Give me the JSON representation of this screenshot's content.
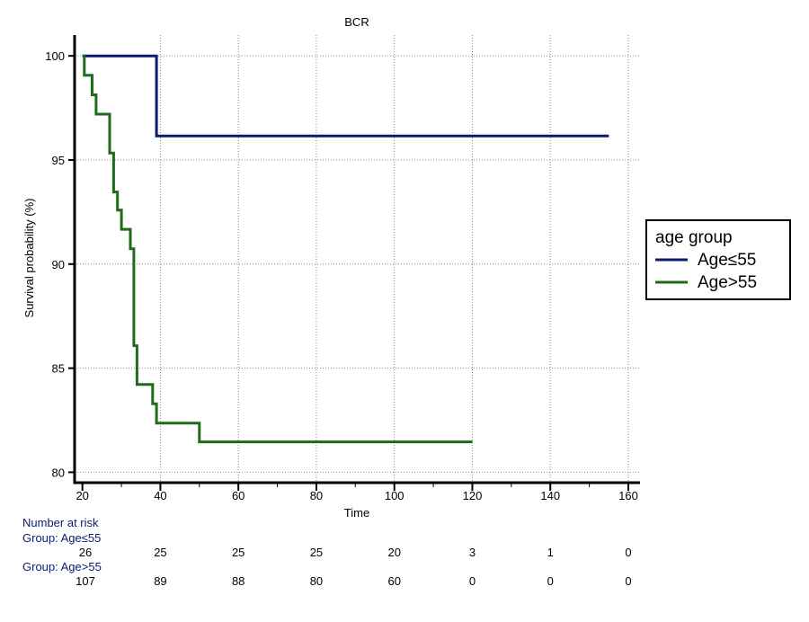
{
  "chart_data": {
    "type": "line",
    "title": "BCR",
    "xlabel": "Time",
    "ylabel": "Survival probability (%)",
    "xlim": [
      18,
      163
    ],
    "ylim": [
      79.5,
      101
    ],
    "x_ticks": [
      20,
      40,
      60,
      80,
      100,
      120,
      140,
      160
    ],
    "x_minor_ticks": [
      30,
      50,
      70,
      90,
      110,
      130,
      150
    ],
    "y_ticks": [
      80,
      85,
      90,
      95,
      100
    ],
    "grid": true,
    "legend": {
      "title": "age group",
      "placement": "right"
    },
    "series": [
      {
        "name": "Age≤55",
        "color": "#0d1b6e",
        "step": true,
        "points": [
          [
            20,
            100
          ],
          [
            39,
            100
          ],
          [
            39,
            96.15
          ],
          [
            155,
            96.15
          ]
        ]
      },
      {
        "name": "Age>55",
        "color": "#1f6b1a",
        "step": true,
        "points": [
          [
            20,
            100
          ],
          [
            20.5,
            100
          ],
          [
            20.5,
            99.07
          ],
          [
            22.5,
            99.07
          ],
          [
            22.5,
            98.13
          ],
          [
            23.5,
            98.13
          ],
          [
            23.5,
            97.2
          ],
          [
            27,
            97.2
          ],
          [
            27,
            95.33
          ],
          [
            28,
            95.33
          ],
          [
            28,
            93.46
          ],
          [
            29,
            93.46
          ],
          [
            29,
            92.59
          ],
          [
            30,
            92.59
          ],
          [
            30,
            91.67
          ],
          [
            32.3,
            91.67
          ],
          [
            32.3,
            90.74
          ],
          [
            33.2,
            90.74
          ],
          [
            33.2,
            86.08
          ],
          [
            34,
            86.08
          ],
          [
            34,
            84.22
          ],
          [
            38,
            84.22
          ],
          [
            38,
            83.29
          ],
          [
            39,
            83.29
          ],
          [
            39,
            82.36
          ],
          [
            50,
            82.36
          ],
          [
            50,
            81.46
          ],
          [
            120,
            81.46
          ]
        ]
      }
    ],
    "risk_table": {
      "heading": "Number at risk",
      "times": [
        20,
        40,
        60,
        80,
        100,
        120,
        140,
        160
      ],
      "groups": [
        {
          "label": "Group: Age≤55",
          "values": [
            "26",
            "25",
            "25",
            "25",
            "20",
            "3",
            "1",
            "0"
          ]
        },
        {
          "label": "Group: Age>55",
          "values": [
            "107",
            "89",
            "88",
            "80",
            "60",
            "0",
            "0",
            "0"
          ]
        }
      ]
    }
  }
}
